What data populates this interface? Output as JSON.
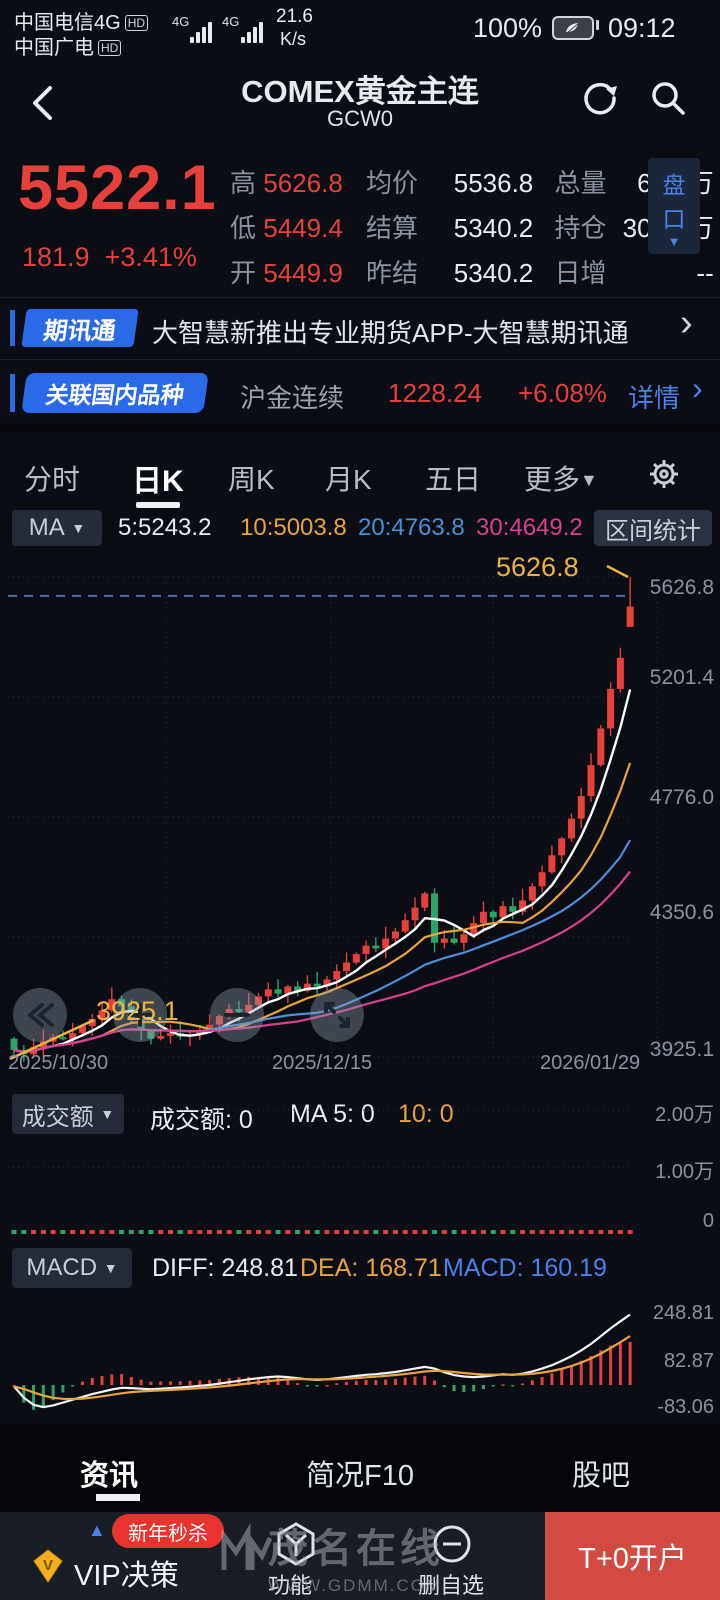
{
  "status_bar": {
    "carrier1": "中国电信4G",
    "carrier2": "中国广电",
    "hd": "HD",
    "net": "4G",
    "speed_value": "21.6",
    "speed_unit": "K/s",
    "battery": "100%",
    "time": "09:12"
  },
  "header": {
    "title": "COMEX黄金主连",
    "subtitle": "GCW0"
  },
  "quote": {
    "price": "5522.1",
    "change": "181.9",
    "change_pct": "+3.41%",
    "rows": [
      {
        "l1": "高",
        "v1": "5626.8",
        "l2": "均价",
        "v2": "5536.8",
        "l3": "总量",
        "v3": "6.45万"
      },
      {
        "l1": "低",
        "v1": "5449.4",
        "l2": "结算",
        "v2": "5340.2",
        "l3": "持仓",
        "v3": "30.46万"
      },
      {
        "l1": "开",
        "v1": "5449.9",
        "l2": "昨结",
        "v2": "5340.2",
        "l3": "日增",
        "v3": "--"
      }
    ],
    "pankou_char1": "盘",
    "pankou_char2": "口"
  },
  "banner1": {
    "badge": "期讯通",
    "text": "大智慧新推出专业期货APP-大智慧期讯通"
  },
  "banner2": {
    "badge": "关联国内品种",
    "name": "沪金连续",
    "price": "1228.24",
    "pct": "+6.08%",
    "detail": "详情"
  },
  "tabs": {
    "t0": "分时",
    "t1": "日K",
    "t2": "周K",
    "t3": "月K",
    "t4": "五日",
    "more": "更多"
  },
  "ma_bar": {
    "label": "MA",
    "ma5": "5:5243.2",
    "ma10": "10:5003.8",
    "ma20": "20:4763.8",
    "ma30": "30:4649.2",
    "range_btn": "区间统计"
  },
  "vol_bar": {
    "label": "成交额",
    "v": "成交额: 0",
    "ma5": "MA 5: 0",
    "ma10": "10: 0"
  },
  "macd_bar": {
    "label": "MACD",
    "diff": "DIFF: 248.81",
    "dea": "DEA: 168.71",
    "macd": "MACD: 160.19"
  },
  "bottom_tabs": {
    "t0": "资讯",
    "t1": "简况F10",
    "t2": "股吧"
  },
  "footer": {
    "promo": "新年秒杀",
    "vip": "VIP决策",
    "fn": "功能",
    "del": "删自选",
    "open_account": "T+0开户"
  },
  "watermark": {
    "line1": "茂名在线",
    "line2": "WWW.GDMM.COM"
  },
  "icons": {
    "dropdown": "▼",
    "chevron": "›",
    "up_triangle": "▲"
  },
  "colors": {
    "up": "#e6403c",
    "down": "#2aa567",
    "ma5": "#ffffff",
    "ma10": "#e8a33c",
    "ma20": "#4a90d9",
    "ma30": "#d6408e",
    "accent_blue": "#4a82e8",
    "annotation": "#eab43e",
    "grid": "#2a3142",
    "dashed_line": "#4a6da8"
  },
  "chart_data": [
    {
      "type": "candlestick",
      "title": "COMEX黄金主连 日K",
      "ylim": [
        3925.1,
        5626.8
      ],
      "y_axis_labels": [
        "5626.8",
        "5201.4",
        "4776.0",
        "4350.6",
        "3925.1"
      ],
      "x_axis_labels": [
        "2025/10/30",
        "2025/12/15",
        "2026/01/29"
      ],
      "high_annotation": "5626.8",
      "low_annotation": "3925.1",
      "open_first": 3990,
      "first_candle_low": 3925.1,
      "last_candle": {
        "open": 5449.9,
        "high": 5626.8,
        "low": 5449.4,
        "close": 5522.1
      },
      "dashed_line_value": 5560,
      "ma_periods": [
        5,
        10,
        20,
        30
      ],
      "closes": [
        3950,
        3935,
        3960,
        3980,
        3995,
        3990,
        4010,
        4035,
        4060,
        4090,
        4130,
        4105,
        4060,
        4018,
        3990,
        4000,
        4010,
        3998,
        4005,
        4015,
        4040,
        4070,
        4095,
        4085,
        4110,
        4140,
        4165,
        4150,
        4175,
        4160,
        4185,
        4175,
        4200,
        4230,
        4260,
        4290,
        4320,
        4310,
        4345,
        4370,
        4410,
        4455,
        4505,
        4330,
        4345,
        4330,
        4360,
        4400,
        4440,
        4420,
        4460,
        4440,
        4480,
        4530,
        4580,
        4640,
        4700,
        4770,
        4850,
        4960,
        5090,
        5230,
        5340.2,
        5522.1
      ]
    },
    {
      "type": "bar",
      "name": "成交额",
      "values_all": 0,
      "ma5": 0,
      "ma10": 0,
      "y_axis_labels": [
        "2.00万",
        "1.00万",
        "0"
      ],
      "ylim": [
        0,
        20000
      ]
    },
    {
      "type": "macd",
      "diff_last": 248.81,
      "dea_last": 168.71,
      "macd_last": 160.19,
      "y_axis_labels": [
        "248.81",
        "82.87",
        "-83.06"
      ],
      "ylim": [
        -83.06,
        248.81
      ],
      "diff": [
        -5,
        -45,
        -70,
        -78,
        -72,
        -62,
        -52,
        -42,
        -32,
        -24,
        -16,
        -10,
        -11,
        -13,
        -15,
        -13,
        -11,
        -9,
        -6,
        -3,
        0,
        5,
        10,
        15,
        20,
        24,
        28,
        30,
        28,
        24,
        20,
        18,
        20,
        24,
        28,
        32,
        36,
        38,
        42,
        46,
        52,
        58,
        64,
        58,
        45,
        35,
        30,
        28,
        30,
        34,
        38,
        36,
        40,
        48,
        58,
        70,
        85,
        102,
        122,
        145,
        172,
        200,
        225,
        248.81
      ]
    }
  ]
}
